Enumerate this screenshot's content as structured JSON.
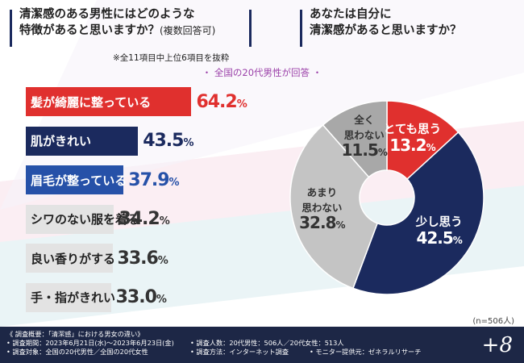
{
  "question_left": {
    "line1": "清潔感のある男性にはどのような",
    "line2": "特徴があると思いますか？",
    "note": "(複数回答可)"
  },
  "question_right": {
    "line1": "あなたは自分に",
    "line2": "清潔感があると思いますか？"
  },
  "extract_note": "※全11項目中上位6項目を抜粋",
  "subhead": "・ 全国の20代男性が回答 ・",
  "n_note": "(n=506人)",
  "colors": {
    "red": "#e0302e",
    "navy": "#1b2a5e",
    "blue": "#2651a8",
    "gray1": "#e3e3e3",
    "gray2": "#c4c4c4",
    "gray3": "#a8a8a8",
    "footer": "#1d2746"
  },
  "chart_data": [
    {
      "type": "bar",
      "orientation": "horizontal",
      "categories": [
        "髪が綺麗に整っている",
        "肌がきれい",
        "眉毛が整っている",
        "シワのない服を着る",
        "良い香りがする",
        "手・指がきれい"
      ],
      "values": [
        64.2,
        43.5,
        37.9,
        34.2,
        33.6,
        33.0
      ],
      "value_labels": [
        "64.2",
        "43.5",
        "37.9",
        "34.2",
        "33.6",
        "33.0"
      ],
      "unit": "%"
    },
    {
      "type": "pie",
      "categories": [
        "とても思う",
        "少し思う",
        "あまり思わない",
        "全く思わない"
      ],
      "display_lines": [
        [
          "とても思う"
        ],
        [
          "少し思う"
        ],
        [
          "あまり",
          "思わない"
        ],
        [
          "全く",
          "思わない"
        ]
      ],
      "values": [
        13.2,
        42.5,
        32.8,
        11.5
      ],
      "value_labels": [
        "13.2",
        "42.5",
        "32.8",
        "11.5"
      ],
      "unit": "%"
    }
  ],
  "footer": {
    "overview": "《 調査概要：「清潔感」における男女の違い》",
    "period": "• 調査期間：2023年6月21日(水)～2023年6月23日(金)",
    "people": "• 調査人数：20代男性：506人／20代女性：513人",
    "target": "• 調査対象：全国の20代男性／全国の20代女性",
    "method": "• 調査方法：インターネット調査",
    "provider": "• モニター提供元：ゼネラルリサーチ",
    "logo": "+8"
  }
}
